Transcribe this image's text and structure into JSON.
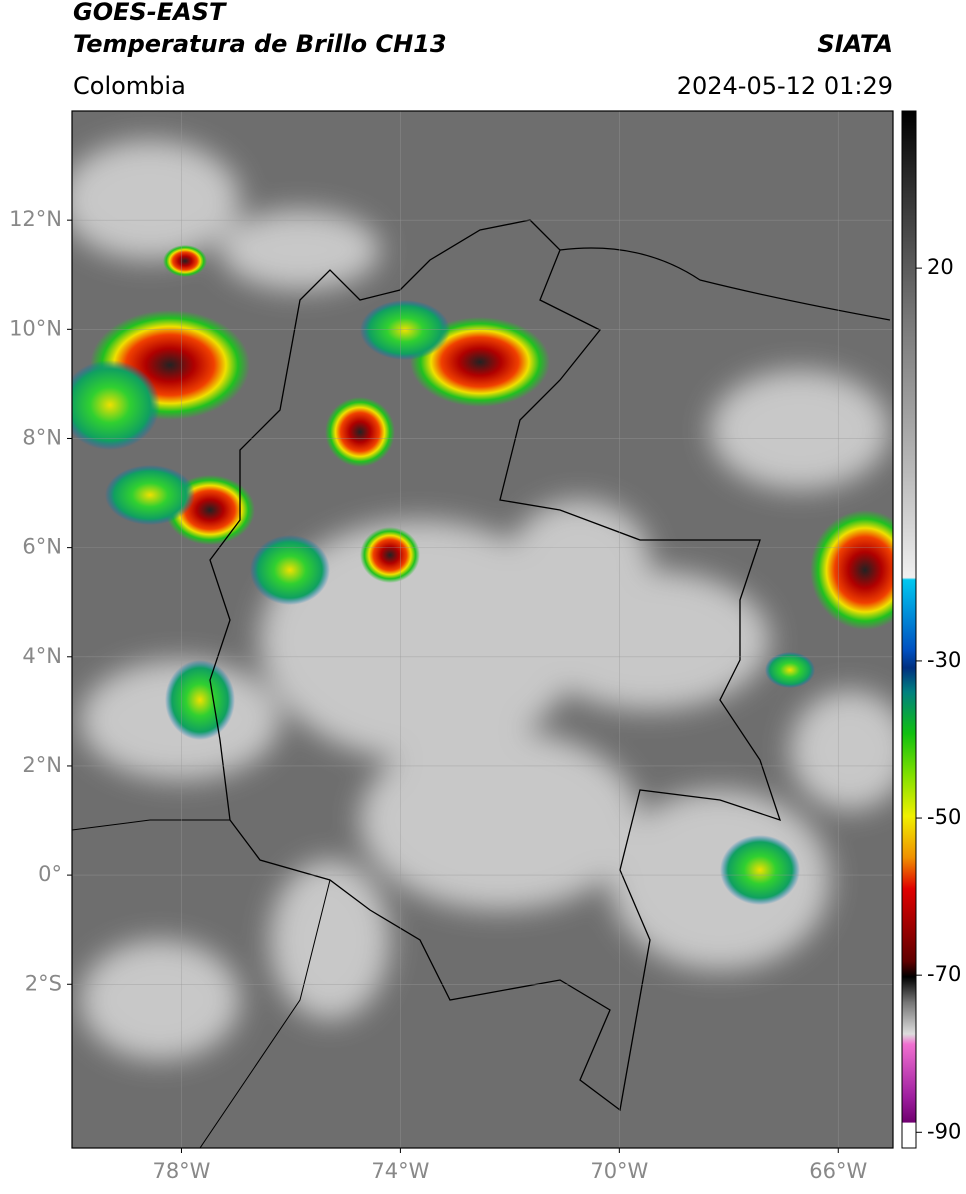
{
  "header": {
    "title": "GOES-EAST",
    "subtitle": "Temperatura de Brillo CH13",
    "source": "SIATA",
    "region": "Colombia",
    "datetime": "2024-05-12 01:29"
  },
  "map": {
    "lonlim": [
      -80,
      -65
    ],
    "latlim": [
      -5,
      14
    ],
    "lonticks": [
      {
        "value": -78,
        "label": "78°W"
      },
      {
        "value": -74,
        "label": "74°W"
      },
      {
        "value": -70,
        "label": "70°W"
      },
      {
        "value": -66,
        "label": "66°W"
      }
    ],
    "latticks": [
      {
        "value": 12,
        "label": "12°N"
      },
      {
        "value": 10,
        "label": "10°N"
      },
      {
        "value": 8,
        "label": "8°N"
      },
      {
        "value": 6,
        "label": "6°N"
      },
      {
        "value": 4,
        "label": "4°N"
      },
      {
        "value": 2,
        "label": "2°N"
      },
      {
        "value": 0,
        "label": "0°"
      },
      {
        "value": -2,
        "label": "2°S"
      }
    ]
  },
  "colorbar": {
    "range": [
      -92,
      40
    ],
    "ticks": [
      20,
      -30,
      -50,
      -70,
      -90
    ]
  }
}
